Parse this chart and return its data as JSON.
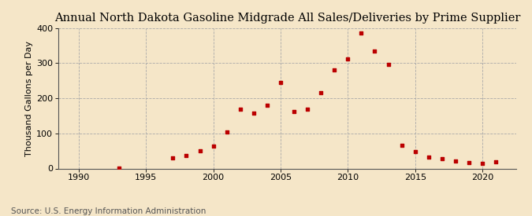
{
  "title": "Annual North Dakota Gasoline Midgrade All Sales/Deliveries by Prime Supplier",
  "ylabel": "Thousand Gallons per Day",
  "source": "Source: U.S. Energy Information Administration",
  "background_color": "#f5e6c8",
  "marker_color": "#bb0000",
  "grid_color": "#aaaaaa",
  "years": [
    1993,
    1997,
    1998,
    1999,
    2000,
    2001,
    2002,
    2003,
    2004,
    2005,
    2006,
    2007,
    2008,
    2009,
    2010,
    2011,
    2012,
    2013,
    2014,
    2015,
    2016,
    2017,
    2018,
    2019,
    2020,
    2021
  ],
  "values": [
    2,
    30,
    38,
    50,
    63,
    103,
    168,
    158,
    180,
    244,
    163,
    170,
    215,
    280,
    312,
    385,
    335,
    296,
    67,
    48,
    33,
    28,
    22,
    17,
    15,
    18
  ],
  "xlim": [
    1988.5,
    2022.5
  ],
  "ylim": [
    0,
    400
  ],
  "yticks": [
    0,
    100,
    200,
    300,
    400
  ],
  "xticks": [
    1990,
    1995,
    2000,
    2005,
    2010,
    2015,
    2020
  ],
  "vgrid_lines": [
    1990,
    1995,
    2000,
    2005,
    2010,
    2015,
    2020
  ],
  "hgrid_lines": [
    100,
    200,
    300,
    400
  ],
  "title_fontsize": 10.5,
  "label_fontsize": 8,
  "tick_fontsize": 8,
  "source_fontsize": 7.5
}
